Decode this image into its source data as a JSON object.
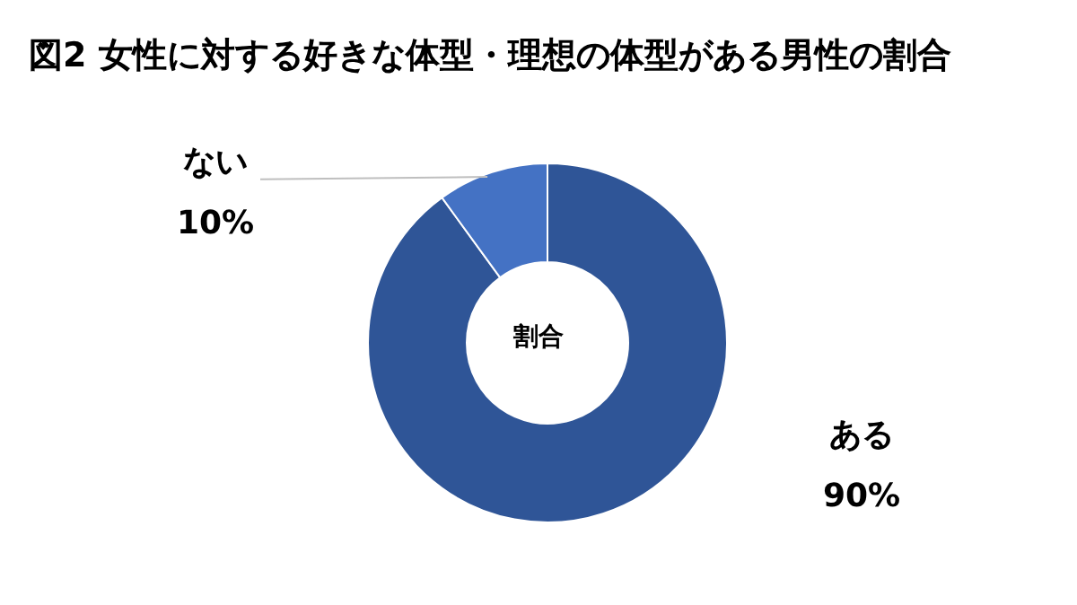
{
  "chart_data": {
    "type": "donut",
    "title": "図2 女性に対する好きな体型・理想の体型がある男性の割合",
    "categories": [
      "ある",
      "ない"
    ],
    "values": [
      90,
      10
    ],
    "value_labels": [
      "90%",
      "10%"
    ],
    "colors": [
      "#2f5597",
      "#4472c4"
    ],
    "annotations": [
      "割合"
    ],
    "legend": false
  }
}
